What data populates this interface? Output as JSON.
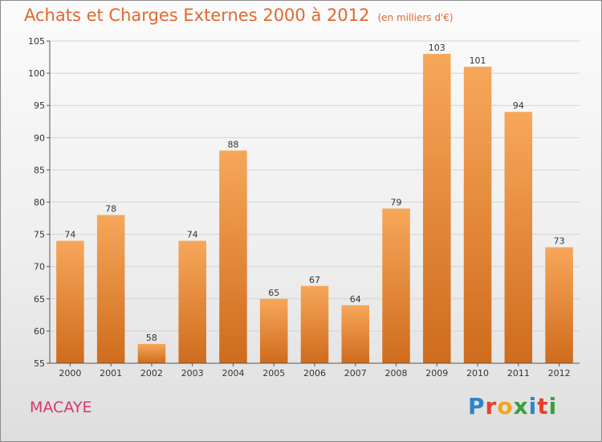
{
  "title": "Achats et Charges Externes 2000 à 2012",
  "unit": "(en milliers d'€)",
  "place": "MACAYE",
  "logo": {
    "letters": [
      {
        "ch": "P",
        "color": "#2d84c8"
      },
      {
        "ch": "r",
        "color": "#e8402a"
      },
      {
        "ch": "o",
        "color": "#f2a61d"
      },
      {
        "ch": "x",
        "color": "#3a9e3e"
      },
      {
        "ch": "i",
        "color": "#2d84c8"
      },
      {
        "ch": "t",
        "color": "#e8402a"
      },
      {
        "ch": "i",
        "color": "#3a9e3e"
      }
    ]
  },
  "colors": {
    "bar_top": "#f7a75a",
    "bar_bottom": "#cf6b1c",
    "title": "#e2672e",
    "place": "#d9366b"
  },
  "chart_data": {
    "type": "bar",
    "title": "Achats et Charges Externes 2000 à 2012",
    "subtitle": "(en milliers d'€)",
    "xlabel": "",
    "ylabel": "",
    "categories": [
      "2000",
      "2001",
      "2002",
      "2003",
      "2004",
      "2005",
      "2006",
      "2007",
      "2008",
      "2009",
      "2010",
      "2011",
      "2012"
    ],
    "values": [
      74,
      78,
      58,
      74,
      88,
      65,
      67,
      64,
      79,
      103,
      101,
      94,
      73
    ],
    "ylim": [
      55,
      105
    ],
    "yticks": [
      55,
      60,
      65,
      70,
      75,
      80,
      85,
      90,
      95,
      100,
      105
    ],
    "grid": true,
    "data_labels": true
  }
}
